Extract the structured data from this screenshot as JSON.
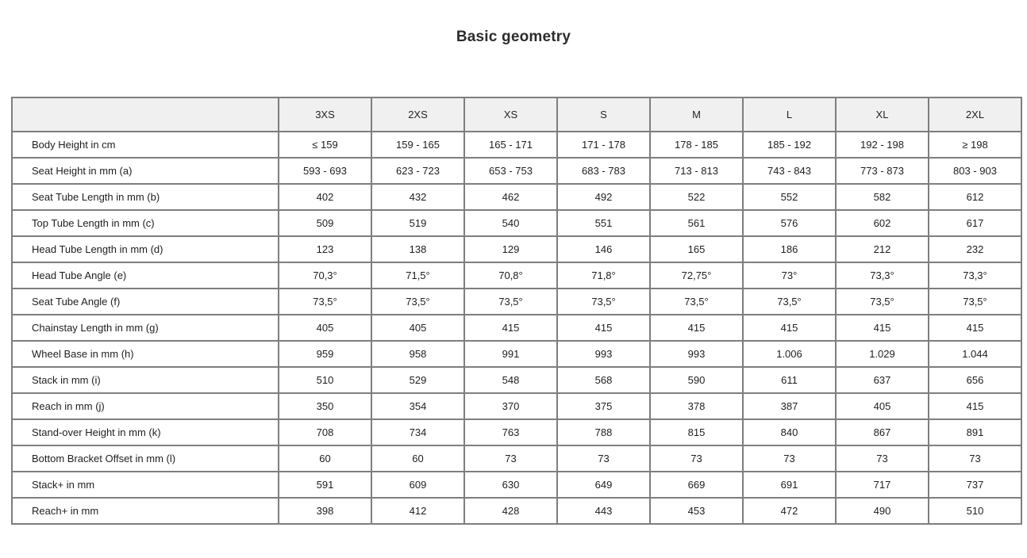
{
  "page_title": "Basic geometry",
  "colors": {
    "header_background": "#f0f0f0",
    "border": "#7e7e7e",
    "text": "#1e1e1e",
    "title_text": "#2d2d2d",
    "page_background": "#ffffff"
  },
  "chart_data": {
    "type": "table",
    "title": "Basic geometry",
    "legend_position": "none",
    "grid": true,
    "size_columns": [
      "3XS",
      "2XS",
      "XS",
      "S",
      "M",
      "L",
      "XL",
      "2XL"
    ],
    "rows": [
      {
        "label": "Body Height in cm",
        "values": [
          "≤ 159",
          "159 - 165",
          "165 - 171",
          "171 - 178",
          "178 - 185",
          "185 - 192",
          "192 - 198",
          "≥ 198"
        ]
      },
      {
        "label": "Seat Height in mm (a)",
        "values": [
          "593 - 693",
          "623 - 723",
          "653 - 753",
          "683 - 783",
          "713 - 813",
          "743 - 843",
          "773 - 873",
          "803 - 903"
        ]
      },
      {
        "label": "Seat Tube Length in mm (b)",
        "values": [
          "402",
          "432",
          "462",
          "492",
          "522",
          "552",
          "582",
          "612"
        ]
      },
      {
        "label": "Top Tube Length in mm (c)",
        "values": [
          "509",
          "519",
          "540",
          "551",
          "561",
          "576",
          "602",
          "617"
        ]
      },
      {
        "label": "Head Tube Length in mm (d)",
        "values": [
          "123",
          "138",
          "129",
          "146",
          "165",
          "186",
          "212",
          "232"
        ]
      },
      {
        "label": "Head Tube Angle (e)",
        "values": [
          "70,3°",
          "71,5°",
          "70,8°",
          "71,8°",
          "72,75°",
          "73°",
          "73,3°",
          "73,3°"
        ]
      },
      {
        "label": "Seat Tube Angle (f)",
        "values": [
          "73,5°",
          "73,5°",
          "73,5°",
          "73,5°",
          "73,5°",
          "73,5°",
          "73,5°",
          "73,5°"
        ]
      },
      {
        "label": "Chainstay Length in mm (g)",
        "values": [
          "405",
          "405",
          "415",
          "415",
          "415",
          "415",
          "415",
          "415"
        ]
      },
      {
        "label": "Wheel Base in mm (h)",
        "values": [
          "959",
          "958",
          "991",
          "993",
          "993",
          "1.006",
          "1.029",
          "1.044"
        ]
      },
      {
        "label": "Stack in mm (i)",
        "values": [
          "510",
          "529",
          "548",
          "568",
          "590",
          "611",
          "637",
          "656"
        ]
      },
      {
        "label": "Reach in mm (j)",
        "values": [
          "350",
          "354",
          "370",
          "375",
          "378",
          "387",
          "405",
          "415"
        ]
      },
      {
        "label": "Stand-over Height in mm (k)",
        "values": [
          "708",
          "734",
          "763",
          "788",
          "815",
          "840",
          "867",
          "891"
        ]
      },
      {
        "label": "Bottom Bracket Offset in mm (l)",
        "values": [
          "60",
          "60",
          "73",
          "73",
          "73",
          "73",
          "73",
          "73"
        ]
      },
      {
        "label": "Stack+ in mm",
        "values": [
          "591",
          "609",
          "630",
          "649",
          "669",
          "691",
          "717",
          "737"
        ]
      },
      {
        "label": "Reach+ in mm",
        "values": [
          "398",
          "412",
          "428",
          "443",
          "453",
          "472",
          "490",
          "510"
        ]
      }
    ]
  }
}
